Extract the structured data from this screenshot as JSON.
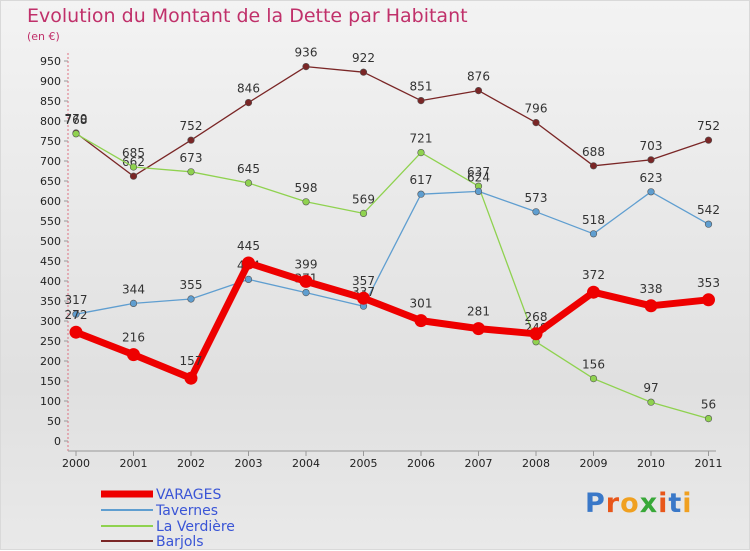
{
  "title": "Evolution du Montant de la Dette par Habitant",
  "subtitle": "(en €)",
  "logo": {
    "letters": [
      "P",
      "r",
      "o",
      "x",
      "i",
      "t",
      "i"
    ],
    "colors": [
      "#3a78c8",
      "#e8561a",
      "#f0a020",
      "#38a838",
      "#e8561a",
      "#3a78c8",
      "#f0a020"
    ]
  },
  "chart_data": {
    "type": "line",
    "title": "Evolution du Montant de la Dette par Habitant",
    "ylabel": "(en €)",
    "xlabel": "",
    "categories": [
      "2000",
      "2001",
      "2002",
      "2003",
      "2004",
      "2005",
      "2006",
      "2007",
      "2008",
      "2009",
      "2010",
      "2011"
    ],
    "ylim": [
      0,
      950
    ],
    "yticks": [
      0,
      50,
      100,
      150,
      200,
      250,
      300,
      350,
      400,
      450,
      500,
      550,
      600,
      650,
      700,
      750,
      800,
      850,
      900,
      950
    ],
    "grid": false,
    "legend_position": "bottom-left",
    "series": [
      {
        "name": "VARAGES",
        "color": "#ee0000",
        "values": [
          272,
          216,
          157,
          445,
          399,
          357,
          301,
          281,
          268,
          372,
          338,
          353
        ]
      },
      {
        "name": "Tavernes",
        "color": "#5f9ed0",
        "values": [
          317,
          344,
          355,
          404,
          371,
          337,
          617,
          624,
          573,
          518,
          623,
          542
        ]
      },
      {
        "name": "La Verdière",
        "color": "#8fd24f",
        "values": [
          768,
          685,
          673,
          645,
          598,
          569,
          721,
          637,
          248,
          156,
          97,
          56
        ]
      },
      {
        "name": "Barjols",
        "color": "#7a2626",
        "values": [
          770,
          662,
          752,
          846,
          936,
          922,
          851,
          876,
          796,
          688,
          703,
          752
        ]
      }
    ]
  }
}
